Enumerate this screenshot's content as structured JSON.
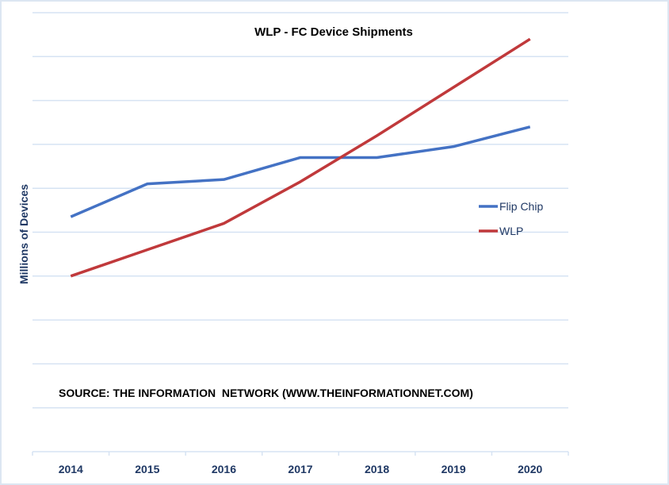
{
  "chart_data": {
    "type": "line",
    "title": "WLP - FC Device Shipments",
    "xlabel": "",
    "ylabel": "Millions of Devices",
    "categories": [
      "2014",
      "2015",
      "2016",
      "2017",
      "2018",
      "2019",
      "2020"
    ],
    "series": [
      {
        "name": "Flip Chip",
        "color": "#4472c4",
        "values": [
          5.35,
          6.1,
          6.2,
          6.7,
          6.7,
          6.95,
          7.4
        ]
      },
      {
        "name": "WLP",
        "color": "#c0393b",
        "values": [
          4.0,
          4.6,
          5.2,
          6.15,
          7.2,
          8.3,
          9.4
        ]
      }
    ],
    "ylim": [
      0,
      10
    ],
    "y_ticks_labeled": false,
    "grid": true,
    "legend": "right",
    "annotation": "SOURCE: THE INFORMATION  NETWORK (WWW.THEINFORMATIONNET.COM)"
  }
}
